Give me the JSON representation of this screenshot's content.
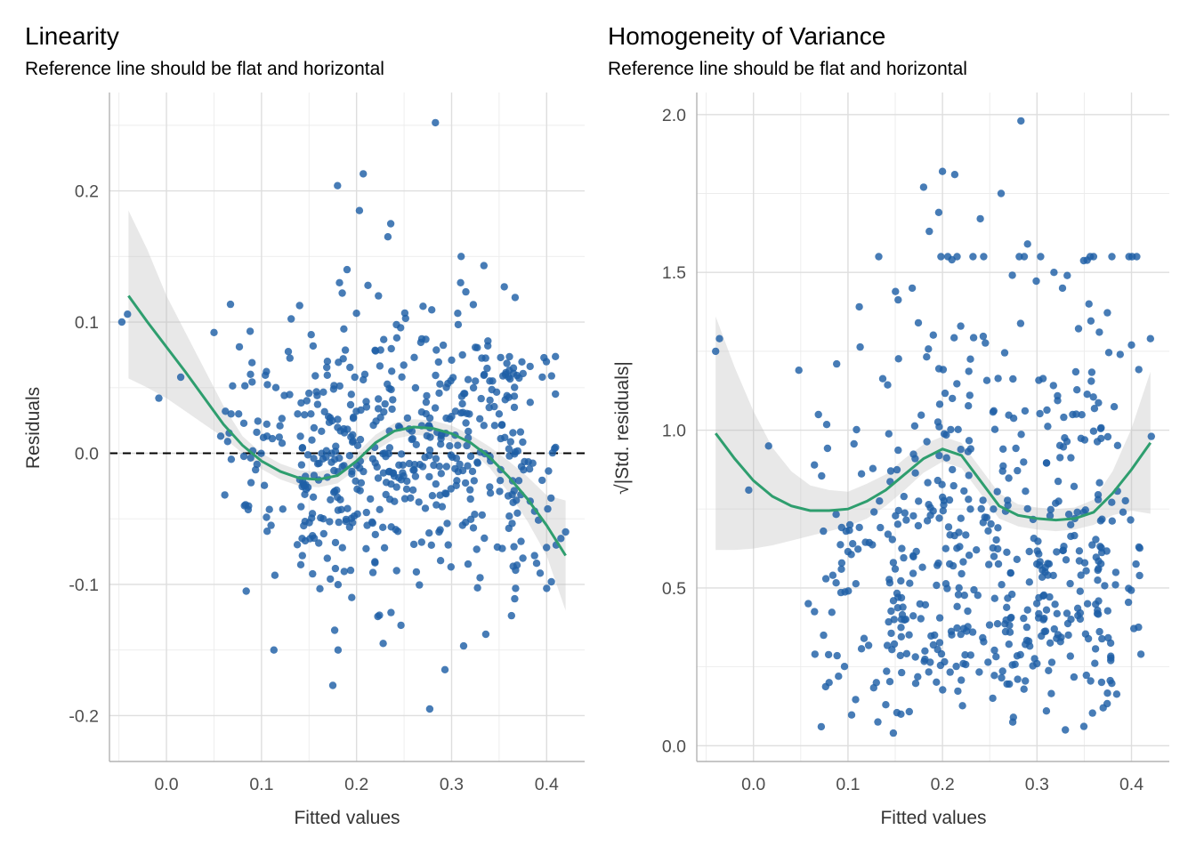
{
  "colors": {
    "points": "#1f5fa6",
    "smooth": "#2e9e6e",
    "ci": "#bdbdbd"
  },
  "chart_data": [
    {
      "type": "scatter",
      "title": "Linearity",
      "subtitle": "Reference line should be flat and horizontal",
      "xlabel": "Fitted values",
      "ylabel": "Residuals",
      "xlim": [
        -0.06,
        0.44
      ],
      "ylim": [
        -0.235,
        0.275
      ],
      "x_ticks": [
        0.0,
        0.1,
        0.2,
        0.3,
        0.4
      ],
      "x_tick_labels": [
        "0.0",
        "0.1",
        "0.2",
        "0.3",
        "0.4"
      ],
      "y_ticks": [
        -0.2,
        -0.1,
        0.0,
        0.1,
        0.2
      ],
      "y_tick_labels": [
        "-0.2",
        "-0.1",
        "0.0",
        "0.1",
        "0.2"
      ],
      "grid": true,
      "reference_line_y": 0.0,
      "smooth_line": {
        "x": [
          -0.04,
          -0.02,
          0.0,
          0.02,
          0.04,
          0.06,
          0.08,
          0.1,
          0.12,
          0.14,
          0.16,
          0.18,
          0.2,
          0.22,
          0.24,
          0.26,
          0.28,
          0.3,
          0.32,
          0.34,
          0.36,
          0.38,
          0.4,
          0.42
        ],
        "y": [
          0.12,
          0.1,
          0.081,
          0.062,
          0.042,
          0.022,
          0.006,
          -0.006,
          -0.014,
          -0.019,
          -0.02,
          -0.017,
          -0.006,
          0.008,
          0.017,
          0.02,
          0.019,
          0.015,
          0.008,
          -0.003,
          -0.018,
          -0.035,
          -0.055,
          -0.078
        ],
        "ci_lower": [
          0.057,
          0.05,
          0.042,
          0.032,
          0.022,
          0.012,
          0.0,
          -0.012,
          -0.02,
          -0.025,
          -0.026,
          -0.023,
          -0.012,
          0.002,
          0.011,
          0.014,
          0.013,
          0.009,
          0.002,
          -0.011,
          -0.03,
          -0.052,
          -0.078,
          -0.12
        ],
        "ci_upper": [
          0.185,
          0.155,
          0.12,
          0.092,
          0.064,
          0.036,
          0.013,
          0.0,
          -0.008,
          -0.013,
          -0.014,
          -0.011,
          0.0,
          0.014,
          0.023,
          0.026,
          0.025,
          0.021,
          0.014,
          0.005,
          -0.006,
          -0.018,
          -0.032,
          -0.036
        ]
      },
      "points": {
        "x": [
          -0.047,
          -0.041,
          -0.008,
          0.015,
          0.05,
          0.057,
          0.062,
          0.068,
          0.076,
          0.082,
          0.086,
          0.088,
          0.09,
          0.095,
          0.102,
          0.11,
          0.124,
          0.138,
          0.145,
          0.152,
          0.165,
          0.175,
          0.177,
          0.18,
          0.182,
          0.186,
          0.19,
          0.195,
          0.203,
          0.207,
          0.212,
          0.22,
          0.228,
          0.233,
          0.236,
          0.242,
          0.27,
          0.277,
          0.283,
          0.293,
          0.3,
          0.31,
          0.315,
          0.325,
          0.334,
          0.336,
          0.35,
          0.356,
          0.366,
          0.375,
          0.382,
          0.4,
          0.405,
          0.41,
          0.415,
          0.42
        ],
        "y": [
          0.1,
          0.106,
          0.042,
          0.058,
          0.092,
          0.013,
          0.032,
          0.03,
          0.03,
          -0.04,
          -0.043,
          0.093,
          0.069,
          0.016,
          0.012,
          -0.055,
          0.044,
          0.03,
          -0.025,
          0.03,
          -0.05,
          -0.177,
          -0.135,
          0.204,
          0.13,
          0.072,
          0.14,
          -0.11,
          0.185,
          0.213,
          0.128,
          0.078,
          -0.145,
          0.165,
          0.175,
          0.098,
          0.112,
          -0.195,
          0.252,
          -0.165,
          0.028,
          0.15,
          0.123,
          0.055,
          0.143,
          -0.138,
          0.03,
          0.012,
          0.035,
          -0.08,
          -0.012,
          -0.103,
          -0.098,
          -0.07,
          -0.065,
          -0.06
        ]
      }
    },
    {
      "type": "scatter",
      "title": "Homogeneity of Variance",
      "subtitle": "Reference line should be flat and horizontal",
      "xlabel": "Fitted values",
      "ylabel": "√|Std. residuals|",
      "xlim": [
        -0.06,
        0.44
      ],
      "ylim": [
        -0.05,
        2.07
      ],
      "x_ticks": [
        0.0,
        0.1,
        0.2,
        0.3,
        0.4
      ],
      "x_tick_labels": [
        "0.0",
        "0.1",
        "0.2",
        "0.3",
        "0.4"
      ],
      "y_ticks": [
        0.0,
        0.5,
        1.0,
        1.5,
        2.0
      ],
      "y_tick_labels": [
        "0.0",
        "0.5",
        "1.0",
        "1.5",
        "2.0"
      ],
      "grid": true,
      "smooth_line": {
        "x": [
          -0.04,
          -0.02,
          0.0,
          0.02,
          0.04,
          0.06,
          0.08,
          0.1,
          0.12,
          0.14,
          0.16,
          0.18,
          0.2,
          0.22,
          0.24,
          0.26,
          0.28,
          0.3,
          0.32,
          0.34,
          0.36,
          0.38,
          0.4,
          0.42
        ],
        "y": [
          0.99,
          0.91,
          0.84,
          0.79,
          0.76,
          0.745,
          0.745,
          0.75,
          0.775,
          0.81,
          0.86,
          0.91,
          0.94,
          0.92,
          0.84,
          0.76,
          0.73,
          0.72,
          0.715,
          0.72,
          0.74,
          0.8,
          0.875,
          0.96
        ],
        "ci_lower": [
          0.62,
          0.62,
          0.625,
          0.635,
          0.65,
          0.665,
          0.68,
          0.695,
          0.72,
          0.76,
          0.81,
          0.865,
          0.9,
          0.88,
          0.8,
          0.72,
          0.695,
          0.685,
          0.68,
          0.685,
          0.7,
          0.73,
          0.745,
          0.735
        ],
        "ci_upper": [
          1.36,
          1.2,
          1.06,
          0.945,
          0.87,
          0.825,
          0.81,
          0.805,
          0.83,
          0.86,
          0.91,
          0.955,
          0.98,
          0.96,
          0.88,
          0.8,
          0.765,
          0.755,
          0.75,
          0.755,
          0.78,
          0.87,
          1.005,
          1.185
        ]
      },
      "points": {
        "x": [
          -0.04,
          -0.036,
          -0.005,
          0.016,
          0.048,
          0.058,
          0.065,
          0.074,
          0.08,
          0.084,
          0.088,
          0.09,
          0.098,
          0.105,
          0.117,
          0.13,
          0.14,
          0.148,
          0.15,
          0.156,
          0.168,
          0.18,
          0.186,
          0.196,
          0.2,
          0.21,
          0.213,
          0.222,
          0.232,
          0.24,
          0.262,
          0.275,
          0.283,
          0.29,
          0.3,
          0.31,
          0.318,
          0.327,
          0.33,
          0.332,
          0.34,
          0.355,
          0.37,
          0.378,
          0.388,
          0.4,
          0.41,
          0.42,
          0.421
        ],
        "y": [
          1.25,
          1.29,
          0.81,
          0.95,
          1.19,
          0.45,
          0.29,
          0.68,
          0.2,
          0.54,
          1.21,
          0.22,
          0.68,
          0.64,
          0.34,
          0.2,
          0.13,
          0.04,
          0.56,
          0.1,
          1.45,
          1.77,
          1.63,
          1.69,
          1.82,
          1.54,
          1.81,
          0.26,
          0.36,
          1.67,
          1.75,
          0.09,
          1.98,
          1.59,
          0.26,
          0.11,
          1.5,
          1.45,
          0.05,
          1.49,
          0.72,
          1.4,
          0.12,
          0.27,
          1.24,
          1.27,
          0.29,
          1.29,
          0.98
        ]
      }
    }
  ]
}
